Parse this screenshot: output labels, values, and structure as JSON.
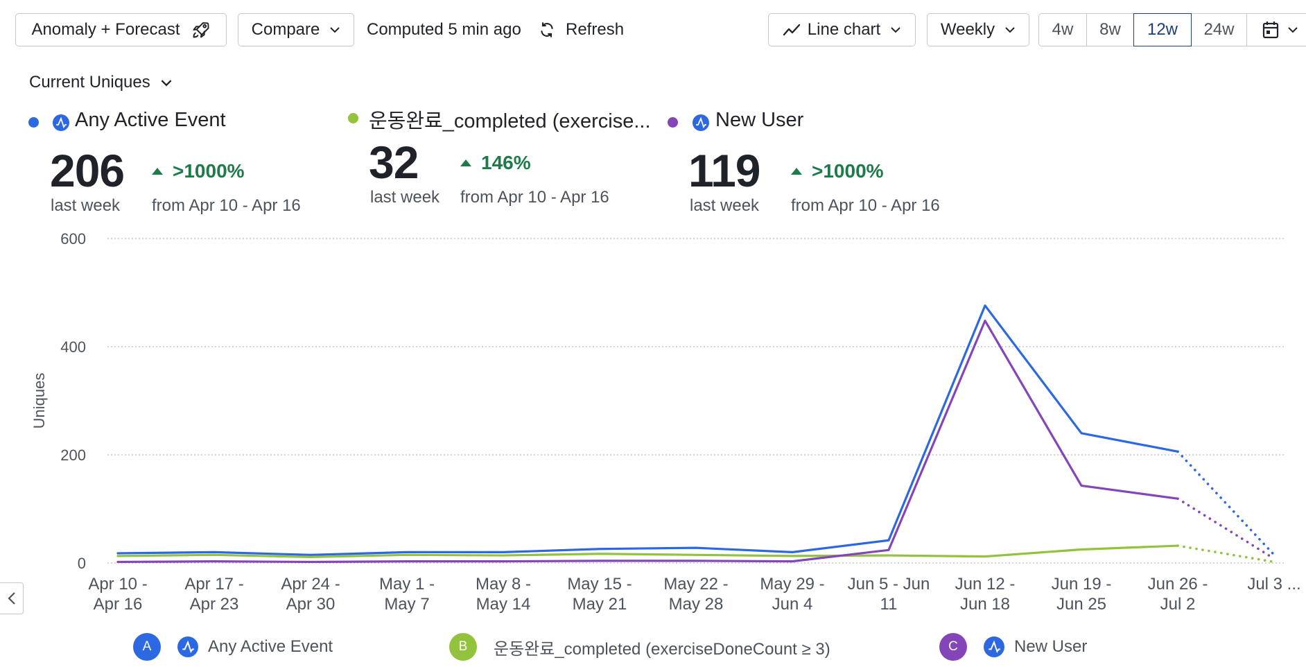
{
  "toolbar": {
    "anomaly_label": "Anomaly + Forecast",
    "compare_label": "Compare",
    "computed_text": "Computed 5 min ago",
    "refresh_label": "Refresh",
    "chart_type_label": "Line chart",
    "interval_label": "Weekly",
    "ranges": [
      "4w",
      "8w",
      "12w",
      "24w"
    ],
    "active_range": "12w"
  },
  "metric_selector": "Current Uniques",
  "metrics": [
    {
      "name": "Any Active Event",
      "value": "206",
      "period": "last week",
      "delta": ">1000%",
      "compare": "from Apr 10 - Apr 16",
      "color": "#2c68e1"
    },
    {
      "name": "운동완료_completed (exercise...",
      "value": "32",
      "period": "last week",
      "delta": "146%",
      "compare": "from Apr 10 - Apr 16",
      "color": "#93c23d"
    },
    {
      "name": "New User",
      "value": "119",
      "period": "last week",
      "delta": ">1000%",
      "compare": "from Apr 10 - Apr 16",
      "color": "#8445b8"
    }
  ],
  "legend": [
    {
      "badge": "A",
      "label": "Any Active Event",
      "color": "#2c68e1",
      "icon": "amplitude-icon"
    },
    {
      "badge": "B",
      "label": "운동완료_completed (exerciseDoneCount ≥ 3)",
      "color": "#93c23d",
      "icon": ""
    },
    {
      "badge": "C",
      "label": "New User",
      "color": "#8445b8",
      "icon": "amplitude-icon"
    }
  ],
  "chart_data": {
    "type": "line",
    "ylabel": "Uniques",
    "xlabel": "",
    "ylim": [
      0,
      600
    ],
    "yticks": [
      0,
      200,
      400,
      600
    ],
    "grid": true,
    "categories": [
      [
        "Apr 10 -",
        "Apr 16"
      ],
      [
        "Apr 17 -",
        "Apr 23"
      ],
      [
        "Apr 24 -",
        "Apr 30"
      ],
      [
        "May 1 -",
        "May 7"
      ],
      [
        "May 8 -",
        "May 14"
      ],
      [
        "May 15 -",
        "May 21"
      ],
      [
        "May 22 -",
        "May 28"
      ],
      [
        "May 29 -",
        "Jun 4"
      ],
      [
        "Jun 5 - Jun",
        "11"
      ],
      [
        "Jun 12 -",
        "Jun 18"
      ],
      [
        "Jun 19 -",
        "Jun 25"
      ],
      [
        "Jun 26 -",
        "Jul 2"
      ],
      [
        "Jul 3 ...",
        ""
      ]
    ],
    "forecast_from_index": 11,
    "series": [
      {
        "name": "Any Active Event",
        "color": "#2c68e1",
        "values": [
          18,
          20,
          15,
          20,
          20,
          26,
          28,
          20,
          42,
          476,
          240,
          206,
          15
        ]
      },
      {
        "name": "운동완료_completed (exerciseDoneCount ≥ 3)",
        "color": "#93c23d",
        "values": [
          13,
          15,
          11,
          15,
          14,
          17,
          15,
          13,
          14,
          12,
          25,
          32,
          2
        ]
      },
      {
        "name": "New User",
        "color": "#8445b8",
        "values": [
          2,
          3,
          2,
          3,
          3,
          4,
          4,
          3,
          24,
          448,
          143,
          119,
          8
        ]
      }
    ]
  }
}
